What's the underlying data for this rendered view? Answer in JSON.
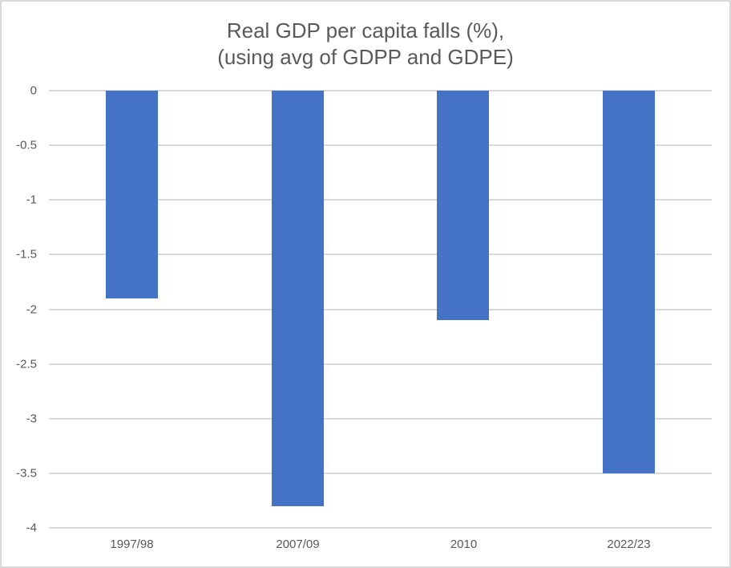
{
  "window": {
    "background": "#ffffff",
    "frame_border_color": "#d9d9d9"
  },
  "chart_data": {
    "type": "bar",
    "title_line1": "Real GDP per capita falls (%),",
    "title_line2": "(using avg of GDPP and GDPE)",
    "categories": [
      "1997/98",
      "2007/09",
      "2010",
      "2022/23"
    ],
    "values": [
      -1.9,
      -3.8,
      -2.1,
      -3.5
    ],
    "ylim": [
      0,
      -4
    ],
    "ytick_labels": [
      "0",
      "-0.5",
      "-1",
      "-1.5",
      "-2",
      "-2.5",
      "-3",
      "-3.5",
      "-4"
    ],
    "xlabel": "",
    "ylabel": "",
    "grid": "horizontal",
    "legend": "none",
    "bar_color": "#4472c4",
    "gridline_color": "#d9d9d9",
    "axis_text_color": "#595959",
    "title_color": "#595959"
  }
}
